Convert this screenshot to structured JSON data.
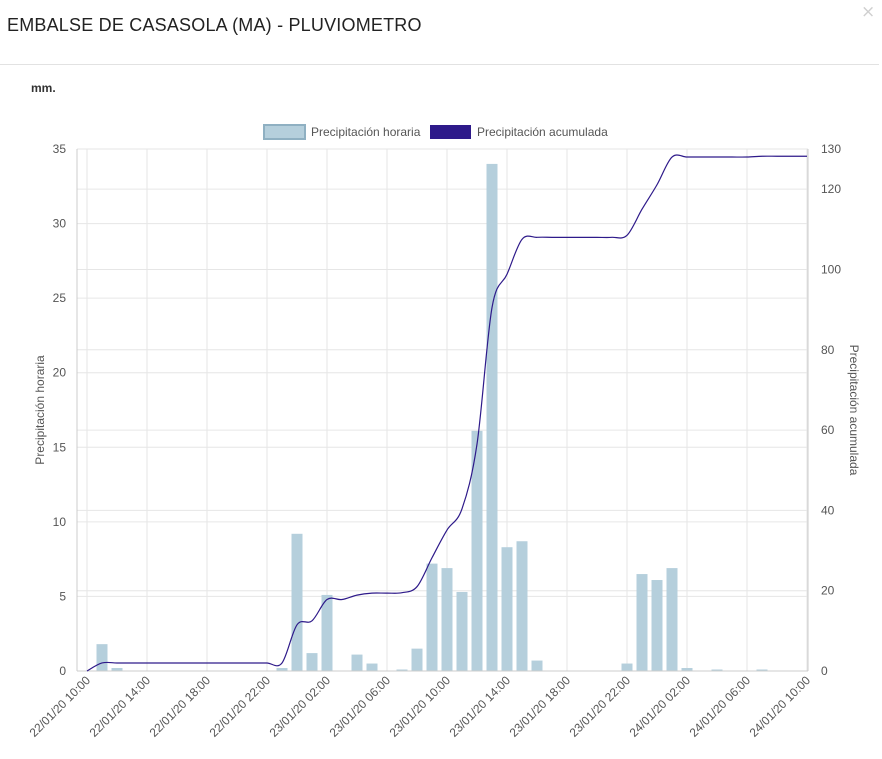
{
  "modal": {
    "title": "EMBALSE DE CASASOLA (MA) - PLUVIOMETRO",
    "close_label": "×",
    "units": "mm."
  },
  "colors": {
    "bar": "#b5cfdc",
    "bar_legend_border": "#8fb0c2",
    "line": "#2e1a8a",
    "grid": "#e6e6e6",
    "axis": "#cccccc",
    "text": "#555555"
  },
  "chart_data": {
    "type": "bar",
    "legend_position": "top-center",
    "grid": true,
    "x_tick_labels": [
      "22/01/20 10:00",
      "22/01/20 14:00",
      "22/01/20 18:00",
      "22/01/20 22:00",
      "23/01/20 02:00",
      "23/01/20 06:00",
      "23/01/20 10:00",
      "23/01/20 14:00",
      "23/01/20 18:00",
      "23/01/20 22:00",
      "24/01/20 02:00",
      "24/01/20 06:00",
      "24/01/20 10:00"
    ],
    "x_hours": [
      0,
      1,
      2,
      3,
      4,
      5,
      6,
      7,
      8,
      9,
      10,
      11,
      12,
      13,
      14,
      15,
      16,
      17,
      18,
      19,
      20,
      21,
      22,
      23,
      24,
      25,
      26,
      27,
      28,
      29,
      30,
      31,
      32,
      33,
      34,
      35,
      36,
      37,
      38,
      39,
      40,
      41,
      42,
      43,
      44,
      45,
      46,
      47,
      48
    ],
    "left_axis": {
      "label": "Precipitación horaria",
      "range": [
        0,
        35
      ],
      "ticks": [
        0,
        5,
        10,
        15,
        20,
        25,
        30,
        35
      ]
    },
    "right_axis": {
      "label": "Precipitación acumulada",
      "range": [
        0,
        130
      ],
      "ticks": [
        0,
        20,
        40,
        60,
        80,
        100,
        120,
        130
      ]
    },
    "series": [
      {
        "name": "Precipitación horaria",
        "type": "bar",
        "axis": "left",
        "values": [
          0,
          1.8,
          0.2,
          0,
          0,
          0,
          0,
          0,
          0,
          0,
          0,
          0,
          0,
          0.2,
          9.2,
          1.2,
          5.1,
          0,
          1.1,
          0.5,
          0,
          0.1,
          1.5,
          7.2,
          6.9,
          5.3,
          16.1,
          34.0,
          8.3,
          8.7,
          0.7,
          0,
          0,
          0,
          0,
          0,
          0.5,
          6.5,
          6.1,
          6.9,
          0.2,
          0,
          0.1,
          0,
          0,
          0.1,
          0,
          0,
          0
        ]
      },
      {
        "name": "Precipitación acumulada",
        "type": "line",
        "axis": "right",
        "values": [
          0,
          2.0,
          2.0,
          2.0,
          2.0,
          2.0,
          2.0,
          2.0,
          2.0,
          2.0,
          2.0,
          2.0,
          2.0,
          2.0,
          11.5,
          12.5,
          17.8,
          17.8,
          18.9,
          19.4,
          19.4,
          19.5,
          21.0,
          28.2,
          35.1,
          40.4,
          56.5,
          90.5,
          98.8,
          107.5,
          108.0,
          108.0,
          108.0,
          108.0,
          108.0,
          108.0,
          108.5,
          115.0,
          121.1,
          128.0,
          128.0,
          128.0,
          128.0,
          128.0,
          128.0,
          128.2,
          128.2,
          128.2,
          128.2
        ]
      }
    ]
  }
}
